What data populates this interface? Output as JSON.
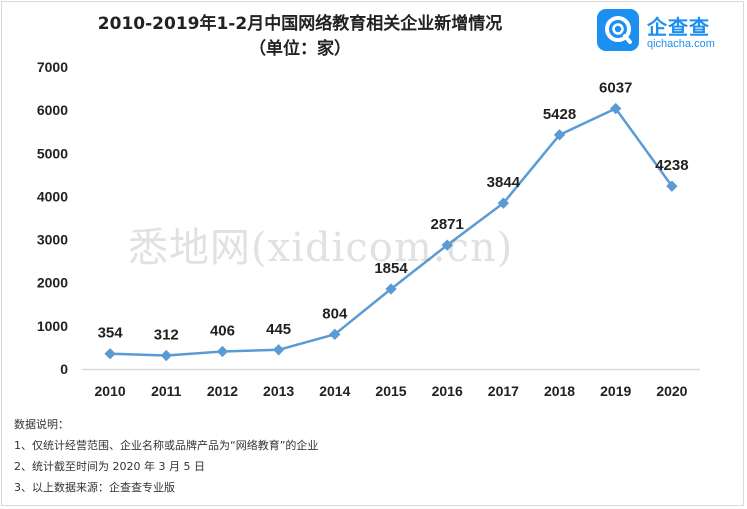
{
  "header": {
    "title_line1": "2010-2019年1-2月中国网络教育相关企业新增情况",
    "title_line2": "（单位：家）"
  },
  "logo": {
    "name": "企查查",
    "url": "qichacha.com",
    "icon": "qichacha-q-icon",
    "color": "#1d8ff0"
  },
  "watermark": "悉地网(xidicom.cn)",
  "notes": {
    "heading": "数据说明：",
    "items": [
      "1、仅统计经营范围、企业名称或品牌产品为“网络教育”的企业",
      "2、统计截至时间为 2020 年 3 月 5 日",
      "3、以上数据来源：企查查专业版"
    ]
  },
  "chart_data": {
    "type": "line",
    "title": "2010-2019年1-2月中国网络教育相关企业新增情况",
    "subtitle": "（单位：家）",
    "xlabel": "",
    "ylabel": "",
    "categories": [
      "2010",
      "2011",
      "2012",
      "2013",
      "2014",
      "2015",
      "2016",
      "2017",
      "2018",
      "2019",
      "2020"
    ],
    "series": [
      {
        "values": [
          354,
          312,
          406,
          445,
          804,
          1854,
          2871,
          3844,
          5428,
          6037,
          4238
        ],
        "color": "#5b9bd5"
      }
    ],
    "data_labels": [
      "354",
      "312",
      "406",
      "445",
      "804",
      "1854",
      "2871",
      "3844",
      "5428",
      "6037",
      "4238"
    ],
    "ylim": [
      0,
      7000
    ],
    "y_ticks": [
      0,
      1000,
      2000,
      3000,
      4000,
      5000,
      6000,
      7000
    ],
    "grid": false,
    "axis_color": "#d9d9d9"
  }
}
